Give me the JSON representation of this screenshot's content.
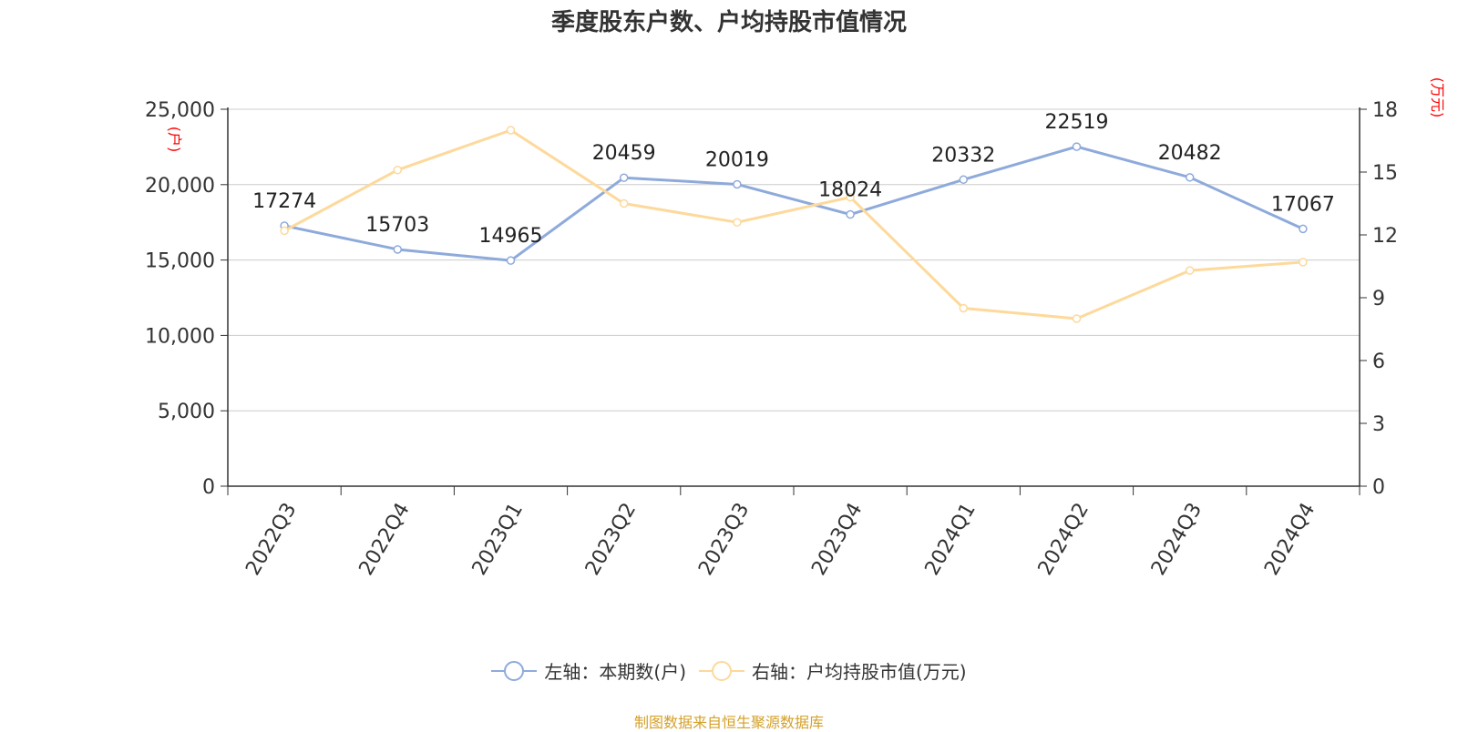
{
  "chart_data": {
    "type": "line",
    "title": "季度股东户数、户均持股市值情况",
    "categories": [
      "2022Q3",
      "2022Q4",
      "2023Q1",
      "2023Q2",
      "2023Q3",
      "2023Q4",
      "2024Q1",
      "2024Q2",
      "2024Q3",
      "2024Q4"
    ],
    "series": [
      {
        "name": "左轴：本期数(户)",
        "axis": "left",
        "color": "#8eaadb",
        "values": [
          17274,
          15703,
          14965,
          20459,
          20019,
          18024,
          20332,
          22519,
          20482,
          17067
        ],
        "labels": [
          "17274",
          "15703",
          "14965",
          "20459",
          "20019",
          "18024",
          "20332",
          "22519",
          "20482",
          "17067"
        ]
      },
      {
        "name": "右轴：户均持股市值(万元)",
        "axis": "right",
        "color": "#fdd99b",
        "values": [
          12.2,
          15.1,
          17.0,
          13.5,
          12.6,
          13.8,
          8.5,
          8.0,
          10.3,
          10.7
        ]
      }
    ],
    "y_left": {
      "label": "(户)",
      "min": 0,
      "max": 25000,
      "ticks": [
        "0",
        "5,000",
        "10,000",
        "15,000",
        "20,000",
        "25,000"
      ]
    },
    "y_right": {
      "label": "(万元)",
      "min": 0,
      "max": 18,
      "ticks": [
        "0",
        "3",
        "6",
        "9",
        "12",
        "15",
        "18"
      ]
    },
    "grid": true,
    "legend_position": "bottom",
    "axis_label_color": "#ff0000"
  },
  "source": "制图数据来自恒生聚源数据库"
}
